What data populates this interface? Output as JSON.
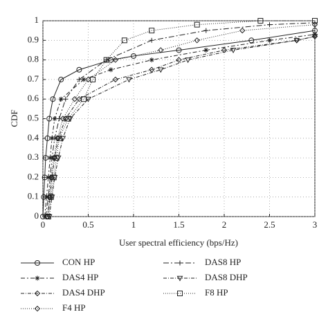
{
  "chart_data": {
    "type": "line",
    "x_label": "User spectral efficiency (bps/Hz)",
    "y_label": "CDF",
    "xlim": [
      0,
      3
    ],
    "ylim": [
      0,
      1
    ],
    "xticks": [
      0,
      0.5,
      1,
      1.5,
      2,
      2.5,
      3
    ],
    "yticks": [
      0,
      0.1,
      0.2,
      0.3,
      0.4,
      0.5,
      0.6,
      0.7,
      0.8,
      0.9,
      1
    ],
    "grid": true,
    "series": [
      {
        "name": "CON HP",
        "color": "#222222",
        "dash": "none",
        "marker": "circle",
        "x": [
          0,
          0.01,
          0.02,
          0.03,
          0.05,
          0.07,
          0.11,
          0.2,
          0.4,
          0.75,
          1.0,
          1.5,
          2.3,
          3.0
        ],
        "values": [
          0,
          0.1,
          0.2,
          0.3,
          0.4,
          0.5,
          0.6,
          0.7,
          0.75,
          0.8,
          0.82,
          0.85,
          0.9,
          0.95
        ]
      },
      {
        "name": "DAS4 HP",
        "color": "#222222",
        "dash": "6 3 2 3",
        "marker": "star",
        "x": [
          0.02,
          0.04,
          0.06,
          0.08,
          0.1,
          0.13,
          0.2,
          0.45,
          0.75,
          1.2,
          1.8,
          2.5,
          3.0
        ],
        "values": [
          0,
          0.1,
          0.2,
          0.3,
          0.4,
          0.5,
          0.6,
          0.7,
          0.75,
          0.8,
          0.85,
          0.9,
          0.93
        ]
      },
      {
        "name": "DAS4 DHP",
        "color": "#222222",
        "dash": "5 2 1 2",
        "marker": "dotdiamond",
        "x": [
          0.05,
          0.08,
          0.1,
          0.13,
          0.17,
          0.25,
          0.4,
          0.8,
          1.2,
          1.5,
          2.0,
          2.8,
          3.0
        ],
        "values": [
          0,
          0.1,
          0.2,
          0.3,
          0.4,
          0.5,
          0.6,
          0.7,
          0.75,
          0.8,
          0.85,
          0.9,
          0.92
        ]
      },
      {
        "name": "F4 HP",
        "color": "#222222",
        "dash": "1 2",
        "marker": "diamond",
        "x": [
          0.05,
          0.07,
          0.09,
          0.12,
          0.16,
          0.22,
          0.35,
          0.5,
          0.8,
          1.3,
          1.7,
          2.2,
          3.0
        ],
        "values": [
          0,
          0.1,
          0.2,
          0.3,
          0.4,
          0.5,
          0.6,
          0.7,
          0.8,
          0.85,
          0.9,
          0.95,
          0.98
        ]
      },
      {
        "name": "DAS8 HP",
        "color": "#222222",
        "dash": "8 3 2 3",
        "marker": "plus",
        "x": [
          0.03,
          0.06,
          0.08,
          0.1,
          0.13,
          0.18,
          0.25,
          0.4,
          0.7,
          1.2,
          1.8,
          2.5,
          3.0
        ],
        "values": [
          0,
          0.1,
          0.2,
          0.3,
          0.4,
          0.5,
          0.6,
          0.7,
          0.8,
          0.9,
          0.95,
          0.98,
          0.99
        ]
      },
      {
        "name": "DAS8 DHP",
        "color": "#222222",
        "dash": "5 2 1 2",
        "marker": "triangle",
        "x": [
          0.07,
          0.1,
          0.13,
          0.17,
          0.22,
          0.3,
          0.5,
          0.95,
          1.3,
          1.6,
          2.1,
          2.8,
          3.0
        ],
        "values": [
          0,
          0.1,
          0.2,
          0.3,
          0.4,
          0.5,
          0.6,
          0.7,
          0.75,
          0.8,
          0.85,
          0.9,
          0.92
        ]
      },
      {
        "name": "F8 HP",
        "color": "#222222",
        "dash": "1 2",
        "marker": "square",
        "x": [
          0.06,
          0.09,
          0.12,
          0.15,
          0.18,
          0.28,
          0.45,
          0.55,
          0.7,
          0.9,
          1.2,
          1.7,
          2.4,
          3.0
        ],
        "values": [
          0,
          0.1,
          0.2,
          0.3,
          0.4,
          0.5,
          0.6,
          0.7,
          0.8,
          0.9,
          0.95,
          0.98,
          1.0,
          1.0
        ]
      }
    ]
  }
}
